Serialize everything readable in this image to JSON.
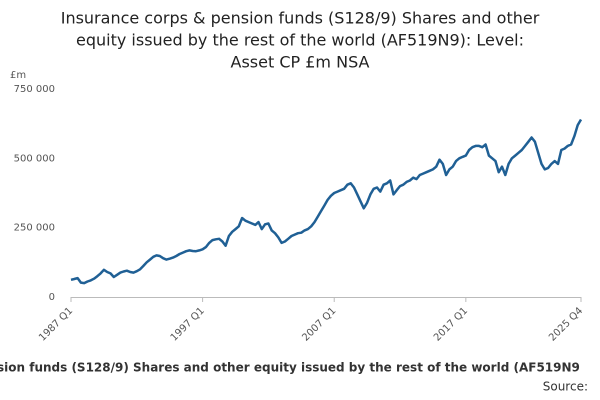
{
  "chart_data": {
    "type": "line",
    "title_lines": [
      "Insurance corps & pension funds (S128/9) Shares and other",
      "equity issued by the rest of the world (AF519N9): Level:",
      "Asset CP £m NSA"
    ],
    "y_unit": "£m",
    "caption": "sion funds (S128/9) Shares and other equity issued by the rest of the world (AF519N9",
    "source": "Source:",
    "categories": [
      "1987 Q1",
      null,
      null,
      null,
      null,
      null,
      null,
      null,
      null,
      null,
      null,
      null,
      null,
      null,
      null,
      null,
      null,
      null,
      null,
      null,
      null,
      null,
      null,
      null,
      null,
      null,
      null,
      null,
      null,
      null,
      null,
      null,
      null,
      null,
      null,
      null,
      null,
      null,
      null,
      null,
      "1997 Q1",
      null,
      null,
      null,
      null,
      null,
      null,
      null,
      null,
      null,
      null,
      null,
      null,
      null,
      null,
      null,
      null,
      null,
      null,
      null,
      null,
      null,
      null,
      null,
      null,
      null,
      null,
      null,
      null,
      null,
      null,
      null,
      null,
      null,
      null,
      null,
      null,
      null,
      null,
      null,
      "2007 Q1",
      null,
      null,
      null,
      null,
      null,
      null,
      null,
      null,
      null,
      null,
      null,
      null,
      null,
      null,
      null,
      null,
      null,
      null,
      null,
      null,
      null,
      null,
      null,
      null,
      null,
      null,
      null,
      null,
      null,
      null,
      null,
      null,
      null,
      null,
      null,
      null,
      null,
      null,
      null,
      "2017 Q1",
      null,
      null,
      null,
      null,
      null,
      null,
      null,
      null,
      null,
      null,
      null,
      null,
      null,
      null,
      null,
      null,
      null,
      null,
      null,
      null,
      null,
      null,
      null,
      null,
      null,
      null,
      null,
      null,
      null,
      null,
      null,
      null,
      null,
      null,
      "2025 Q4"
    ],
    "series": [
      {
        "color": "#206095",
        "values": [
          62000,
          65000,
          68000,
          52000,
          50000,
          56000,
          60000,
          66000,
          75000,
          85000,
          98000,
          90000,
          85000,
          72000,
          80000,
          88000,
          92000,
          95000,
          90000,
          88000,
          93000,
          100000,
          112000,
          125000,
          135000,
          145000,
          150000,
          148000,
          140000,
          135000,
          138000,
          142000,
          148000,
          155000,
          160000,
          165000,
          168000,
          166000,
          165000,
          168000,
          172000,
          180000,
          195000,
          205000,
          208000,
          210000,
          200000,
          185000,
          220000,
          235000,
          245000,
          255000,
          285000,
          275000,
          270000,
          265000,
          260000,
          270000,
          245000,
          262000,
          265000,
          240000,
          230000,
          215000,
          195000,
          200000,
          210000,
          220000,
          225000,
          230000,
          232000,
          240000,
          245000,
          255000,
          270000,
          290000,
          310000,
          330000,
          350000,
          365000,
          375000,
          380000,
          385000,
          390000,
          405000,
          410000,
          395000,
          370000,
          345000,
          320000,
          340000,
          370000,
          390000,
          395000,
          380000,
          405000,
          410000,
          420000,
          370000,
          385000,
          400000,
          405000,
          415000,
          420000,
          430000,
          425000,
          440000,
          445000,
          450000,
          455000,
          460000,
          470000,
          495000,
          480000,
          440000,
          460000,
          470000,
          490000,
          500000,
          505000,
          510000,
          530000,
          540000,
          545000,
          545000,
          540000,
          550000,
          510000,
          500000,
          490000,
          450000,
          470000,
          440000,
          480000,
          500000,
          510000,
          520000,
          530000,
          545000,
          560000,
          575000,
          560000,
          520000,
          480000,
          460000,
          465000,
          480000,
          490000,
          480000,
          530000,
          535000,
          545000,
          550000,
          580000,
          620000,
          640000
        ]
      }
    ],
    "ylim": [
      0,
      750000
    ],
    "yticks": [
      0,
      {
        "value": 250000,
        "label": "250 000"
      },
      {
        "value": 500000,
        "label": "500 000"
      },
      {
        "value": 750000,
        "label": "750 000"
      }
    ],
    "grid": false
  }
}
